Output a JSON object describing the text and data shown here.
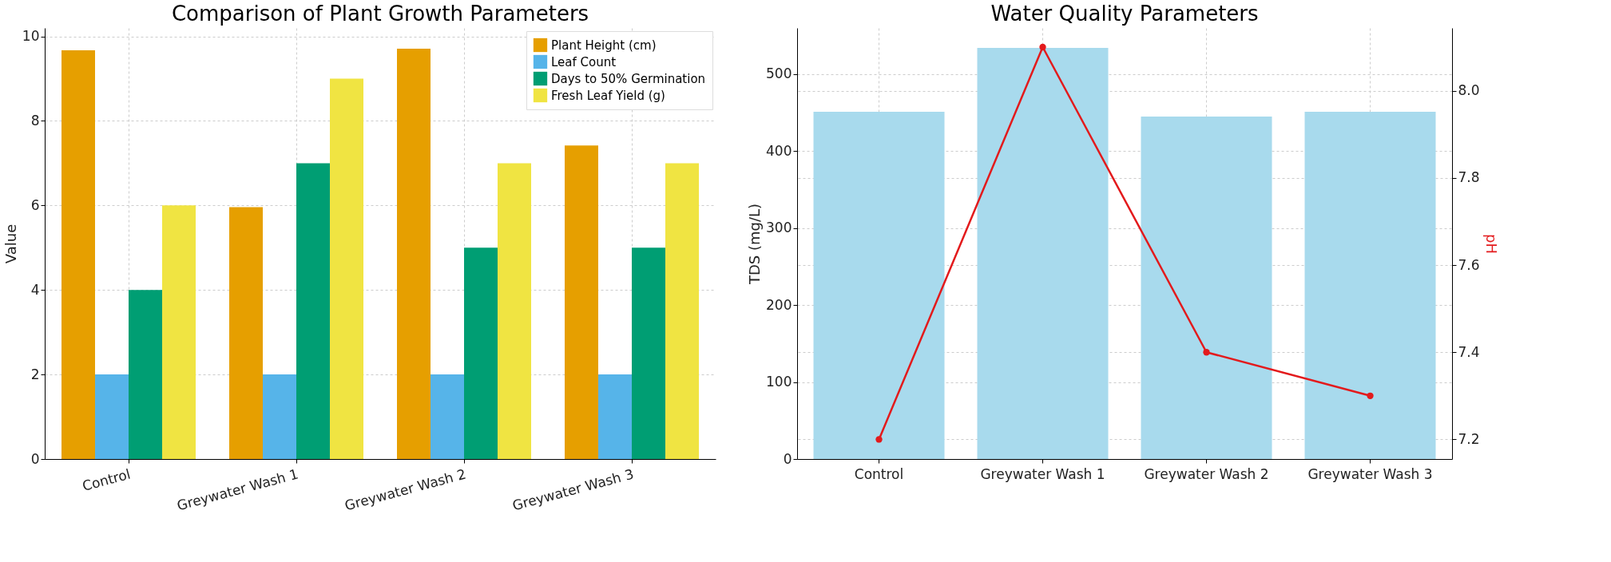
{
  "chart_data": [
    {
      "type": "bar",
      "title": "Comparison of Plant Growth Parameters",
      "ylabel": "Value",
      "categories": [
        "Control",
        "Greywater Wash 1",
        "Greywater Wash 2",
        "Greywater Wash 3"
      ],
      "series": [
        {
          "name": "Plant Height (cm)",
          "color": "#e69f00",
          "values": [
            9.67,
            5.96,
            9.71,
            7.42
          ]
        },
        {
          "name": "Leaf Count",
          "color": "#56b4e9",
          "values": [
            2,
            2,
            2,
            2
          ]
        },
        {
          "name": "Days to 50% Germination",
          "color": "#009e73",
          "values": [
            4,
            7,
            5,
            5
          ]
        },
        {
          "name": "Fresh Leaf Yield (g)",
          "color": "#f0e442",
          "values": [
            6,
            9,
            7,
            7
          ]
        }
      ],
      "ylim": [
        0,
        10.2
      ],
      "yticks": [
        0,
        2,
        4,
        6,
        8,
        10
      ],
      "grid": true,
      "legend": "top right"
    },
    {
      "type": "bar",
      "title": "Water Quality Parameters",
      "ylabel": "TDS (mg/L)",
      "y2label": "pH",
      "categories": [
        "Control",
        "Greywater Wash 1",
        "Greywater Wash 2",
        "Greywater Wash 3"
      ],
      "series": [
        {
          "type": "bar",
          "color": "#a8daed",
          "values": [
            451,
            534,
            445,
            451
          ]
        },
        {
          "type": "line",
          "axis": "y2",
          "color": "#e31a1c",
          "values": [
            7.2,
            8.1,
            7.4,
            7.3
          ]
        }
      ],
      "ylim": [
        0,
        560
      ],
      "yticks": [
        0,
        100,
        200,
        300,
        400,
        500
      ],
      "y2lim": [
        7.155,
        8.144
      ],
      "y2ticks": [
        {
          "value": 7.2,
          "label": "7.2"
        },
        {
          "value": 7.4,
          "label": "7.4"
        },
        {
          "value": 7.6,
          "label": "7.6"
        },
        {
          "value": 7.8,
          "label": "7.8"
        },
        {
          "value": 8.0,
          "label": "8.0"
        }
      ],
      "grid": true,
      "marker": "circle"
    }
  ]
}
